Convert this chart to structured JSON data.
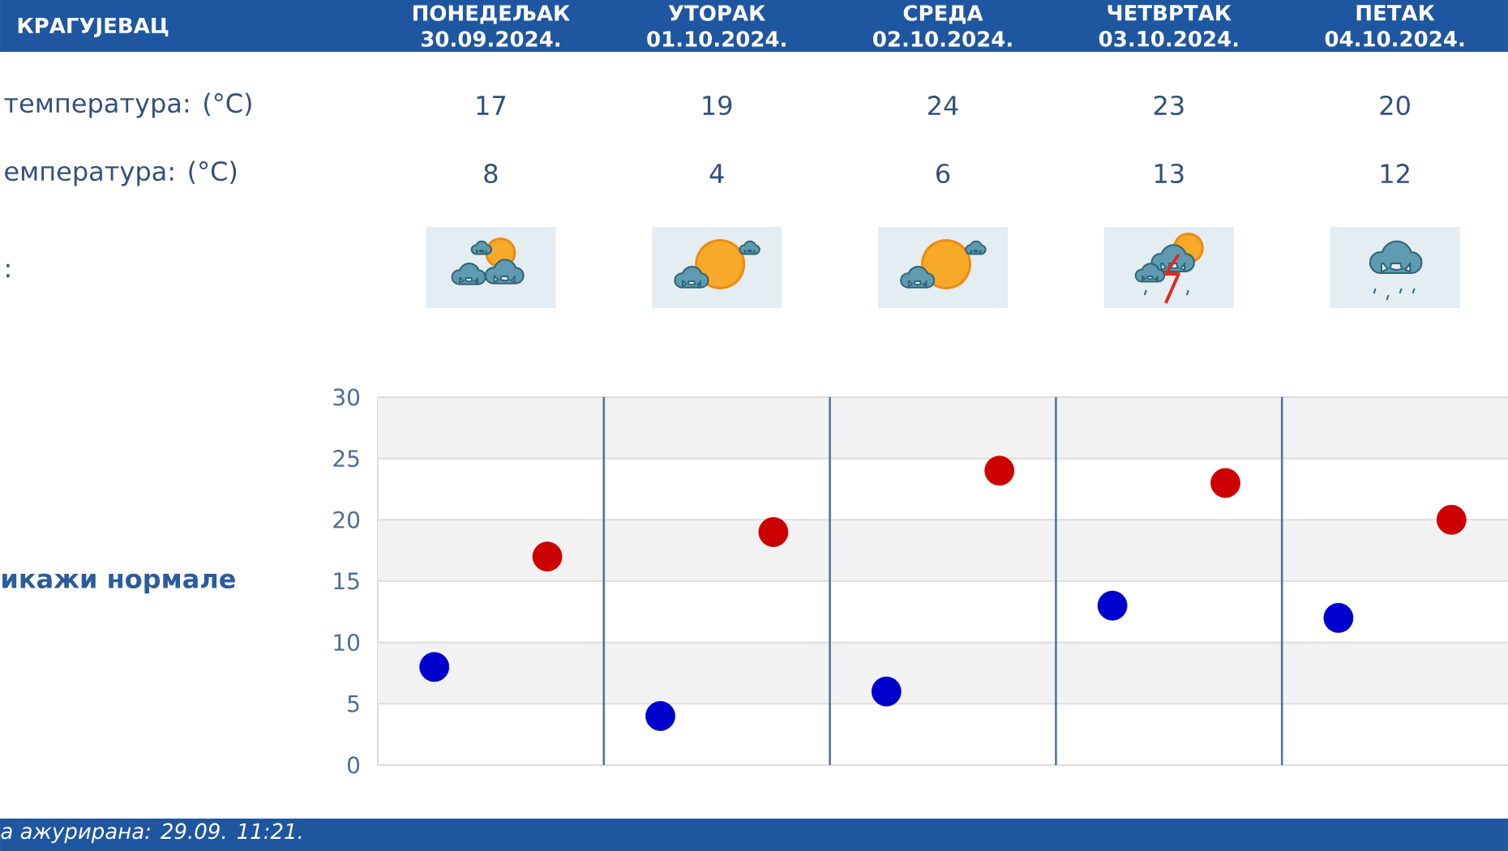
{
  "chart_data": [
    {
      "type": "other",
      "title": "КРАГУЈЕВАЦ",
      "categories": [
        "ПОНЕДЕЉАК 30.09.2024.",
        "УТОРАК 01.10.2024.",
        "СРЕДА 02.10.2024.",
        "ЧЕТВРТАК 03.10.2024.",
        "ПЕТАК 04.10.2024."
      ],
      "series": [
        {
          "values": [
            17,
            19,
            24,
            23,
            20
          ]
        },
        {
          "values": [
            8,
            4,
            6,
            13,
            12
          ]
        }
      ],
      "data_labels": true,
      "annotations": [
        "температура: (°C)",
        "емпература: (°C)",
        ":"
      ]
    },
    {
      "type": "scatter",
      "categories": [
        null,
        null,
        null,
        null,
        null
      ],
      "series": [
        {
          "color": "#cc0000",
          "values": [
            17,
            19,
            24,
            23,
            20
          ]
        },
        {
          "color": "#0000cc",
          "values": [
            8,
            4,
            6,
            13,
            12
          ]
        }
      ],
      "ylim": [
        0,
        30
      ],
      "yticks": [
        0,
        5,
        10,
        15,
        20,
        25,
        30
      ],
      "grid": true,
      "bands": [
        {
          "axis": "y",
          "from": 25,
          "to": 30,
          "color": "#f2f2f2"
        },
        {
          "axis": "y",
          "from": 15,
          "to": 20,
          "color": "#f2f2f2"
        },
        {
          "axis": "y",
          "from": 5,
          "to": 10,
          "color": "#f2f2f2"
        }
      ],
      "marker": "circle",
      "annotations": [
        "икажи нормале",
        "а ажурирана: 29.09. 11:21."
      ]
    }
  ]
}
